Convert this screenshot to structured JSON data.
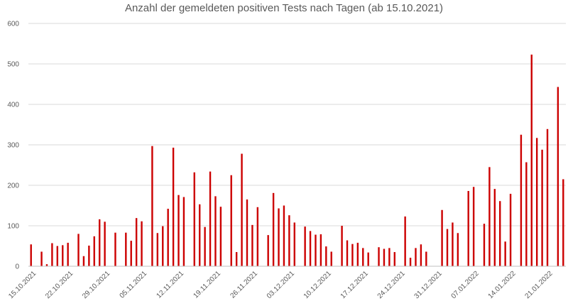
{
  "chart_data": {
    "type": "bar",
    "title": "Anzahl der gemeldeten positiven Tests nach Tagen (ab 15.10.2021)",
    "xlabel": "",
    "ylabel": "",
    "ylim": [
      0,
      600
    ],
    "yticks": [
      0,
      100,
      200,
      300,
      400,
      500,
      600
    ],
    "grid": true,
    "bar_color": "#cc0000",
    "x_tick_labels": [
      "15.10.2021",
      "22.10.2021",
      "29.10.2021",
      "05.11.2021",
      "12.11.2021",
      "19.11.2021",
      "26.11.2021",
      "03.12.2021",
      "10.12.2021",
      "17.12.2021",
      "24.12.2021",
      "31.12.2021",
      "07.01.2022",
      "14.01.2022",
      "21.01.2022"
    ],
    "start_date": "15.10.2021",
    "values": [
      54,
      0,
      36,
      5,
      57,
      50,
      52,
      58,
      0,
      80,
      25,
      51,
      74,
      116,
      110,
      0,
      83,
      0,
      83,
      63,
      119,
      111,
      0,
      297,
      82,
      99,
      142,
      293,
      176,
      171,
      0,
      232,
      153,
      97,
      234,
      173,
      147,
      0,
      225,
      35,
      278,
      165,
      102,
      146,
      0,
      77,
      181,
      143,
      150,
      126,
      108,
      0,
      98,
      87,
      78,
      79,
      49,
      36,
      0,
      100,
      64,
      55,
      58,
      45,
      34,
      0,
      47,
      43,
      45,
      35,
      0,
      123,
      21,
      45,
      54,
      36,
      0,
      0,
      139,
      92,
      108,
      82,
      0,
      186,
      196,
      0,
      105,
      245,
      191,
      161,
      61,
      179,
      0,
      325,
      257,
      523,
      317,
      288,
      339,
      0,
      443,
      215
    ]
  }
}
